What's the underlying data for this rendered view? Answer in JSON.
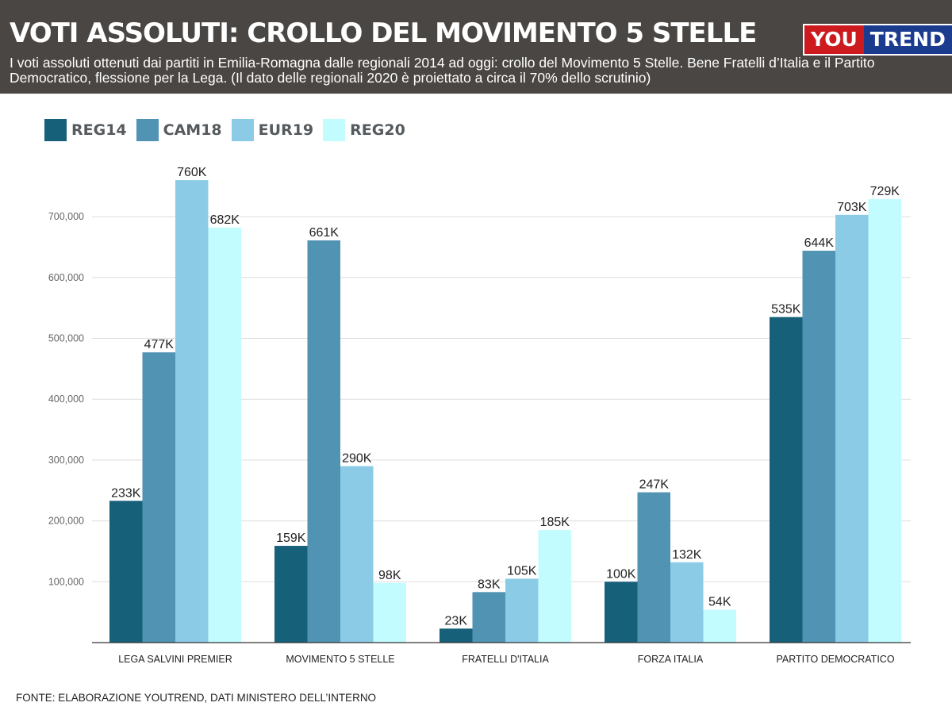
{
  "header": {
    "title": "VOTI ASSOLUTI: CROLLO DEL MOVIMENTO 5 STELLE",
    "subtitle": "I voti assoluti ottenuti dai partiti in Emilia-Romagna dalle regionali 2014 ad oggi: crollo del Movimento 5 Stelle. Bene Fratelli d’Italia e il Partito Democratico, flessione per la Lega. (Il dato delle regionali 2020 è proiettato a circa il 70% dello scrutinio)",
    "logo_you": "YOU",
    "logo_trend": "TREND"
  },
  "colors": {
    "header_bg": "#4a4643",
    "logo_red": "#cc1a1f",
    "logo_blue": "#1a3b8e"
  },
  "source": "FONTE: ELABORAZIONE YOUTREND, DATI MINISTERO DELL’INTERNO",
  "chart_data": {
    "type": "bar",
    "categories": [
      "LEGA SALVINI PREMIER",
      "MOVIMENTO 5 STELLE",
      "FRATELLI D'ITALIA",
      "FORZA ITALIA",
      "PARTITO DEMOCRATICO"
    ],
    "series": [
      {
        "name": "REG14",
        "color": "#17607a",
        "values": [
          233000,
          159000,
          23000,
          100000,
          535000
        ],
        "labels": [
          "233K",
          "159K",
          "23K",
          "100K",
          "535K"
        ]
      },
      {
        "name": "CAM18",
        "color": "#5193b3",
        "values": [
          477000,
          661000,
          83000,
          247000,
          644000
        ],
        "labels": [
          "477K",
          "661K",
          "83K",
          "247K",
          "644K"
        ]
      },
      {
        "name": "EUR19",
        "color": "#8ccbe6",
        "values": [
          760000,
          290000,
          105000,
          132000,
          703000
        ],
        "labels": [
          "760K",
          "290K",
          "105K",
          "132K",
          "703K"
        ]
      },
      {
        "name": "REG20",
        "color": "#c2fcff",
        "values": [
          682000,
          98000,
          185000,
          54000,
          729000
        ],
        "labels": [
          "682K",
          "98K",
          "185K",
          "54K",
          "729K"
        ]
      }
    ],
    "yticks": [
      100000,
      200000,
      300000,
      400000,
      500000,
      600000,
      700000
    ],
    "ytick_labels": [
      "100,000",
      "200,000",
      "300,000",
      "400,000",
      "500,000",
      "600,000",
      "700,000"
    ],
    "ylim": [
      0,
      800000
    ],
    "grid": true,
    "legend_position": "top-left"
  }
}
